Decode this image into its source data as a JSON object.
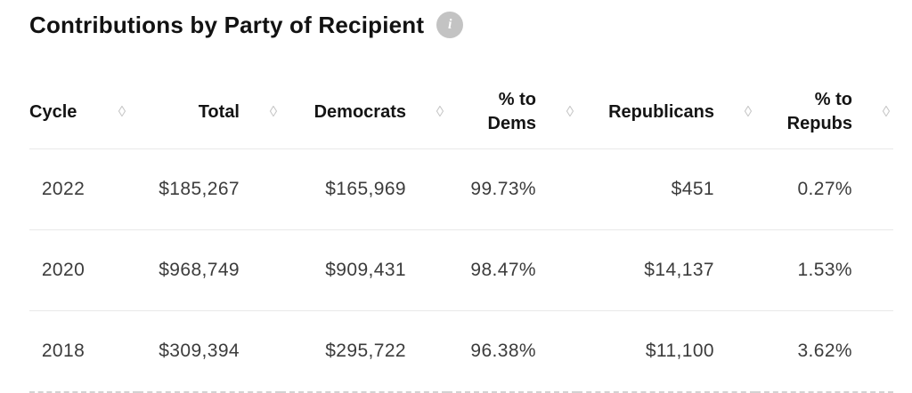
{
  "title": "Contributions by Party of Recipient",
  "icons": {
    "info": "i",
    "sort": "◊"
  },
  "colors": {
    "heading_text": "#121212",
    "body_text": "#3c3c3c",
    "sort_icon": "#c6c6c6",
    "divider": "#e9e9e9",
    "info_badge_bg": "#c3c3c3"
  },
  "table": {
    "columns": [
      {
        "label": "Cycle"
      },
      {
        "label": "Total"
      },
      {
        "label": "Democrats"
      },
      {
        "label": "% to Dems"
      },
      {
        "label": "Republicans"
      },
      {
        "label": "% to Repubs"
      }
    ],
    "rows": [
      {
        "cycle": "2022",
        "total": "$185,267",
        "democrats": "$165,969",
        "pct_dems": "99.73%",
        "republicans": "$451",
        "pct_repubs": "0.27%"
      },
      {
        "cycle": "2020",
        "total": "$968,749",
        "democrats": "$909,431",
        "pct_dems": "98.47%",
        "republicans": "$14,137",
        "pct_repubs": "1.53%"
      },
      {
        "cycle": "2018",
        "total": "$309,394",
        "democrats": "$295,722",
        "pct_dems": "96.38%",
        "republicans": "$11,100",
        "pct_repubs": "3.62%"
      }
    ]
  },
  "chart_data": {
    "type": "table",
    "title": "Contributions by Party of Recipient",
    "columns": [
      "Cycle",
      "Total",
      "Democrats",
      "% to Dems",
      "Republicans",
      "% to Repubs"
    ],
    "rows": [
      [
        2022,
        185267,
        165969,
        99.73,
        451,
        0.27
      ],
      [
        2020,
        968749,
        909431,
        98.47,
        14137,
        1.53
      ],
      [
        2018,
        309394,
        295722,
        96.38,
        11100,
        3.62
      ]
    ]
  }
}
